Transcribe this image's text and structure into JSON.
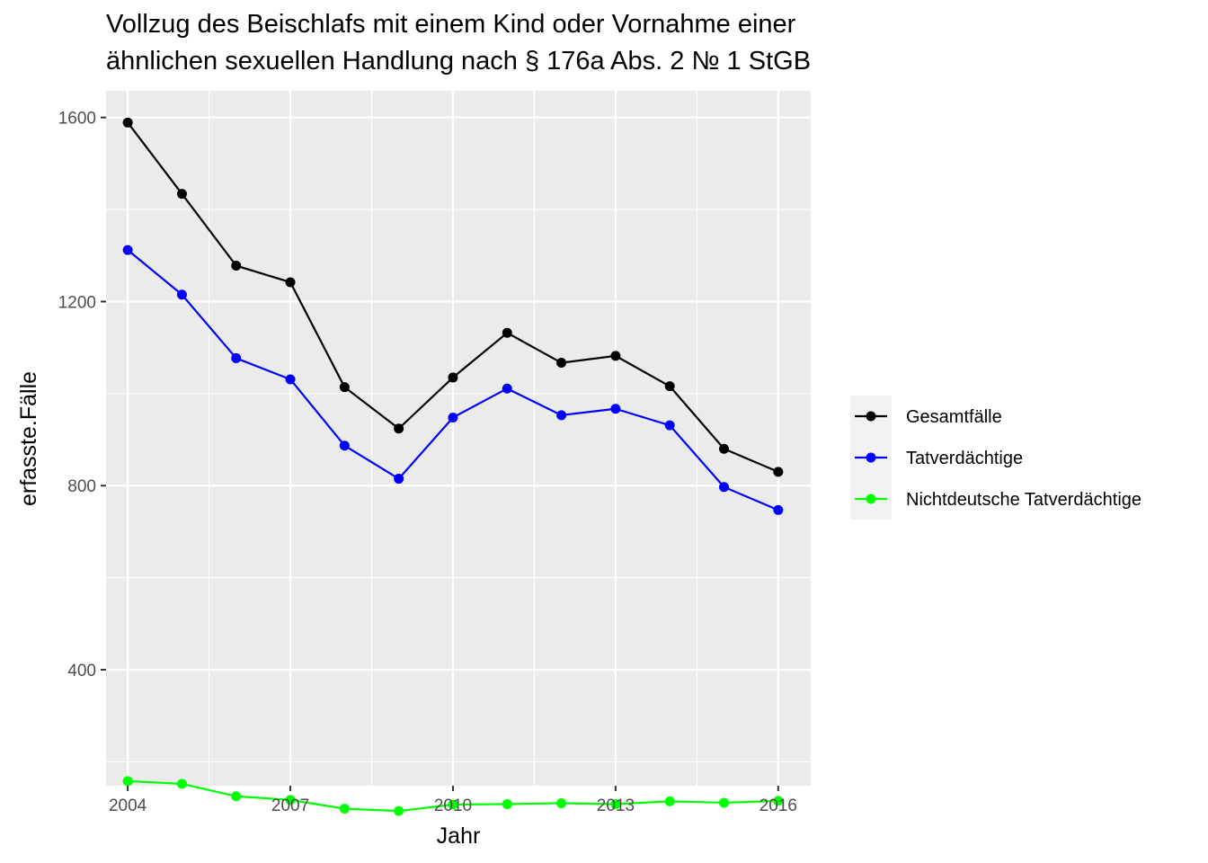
{
  "chart_data": {
    "type": "line",
    "title": [
      "Vollzug des Beischlafs mit einem Kind oder Vornahme einer",
      "ähnlichen sexuellen Handlung nach § 176a Abs. 2 № 1 StGB"
    ],
    "xlabel": "Jahr",
    "ylabel": "erfasste.Fälle",
    "x": [
      2004,
      2005,
      2006,
      2007,
      2008,
      2009,
      2010,
      2011,
      2012,
      2013,
      2014,
      2015,
      2016
    ],
    "x_ticks": [
      "2004",
      "2007",
      "2010",
      "2013",
      "2016"
    ],
    "y_ticks": [
      "400",
      "800",
      "1200",
      "1600"
    ],
    "xlim": [
      2003.6,
      2016.6
    ],
    "ylim": [
      148,
      1658
    ],
    "grid": true,
    "legend_position": "right",
    "series": [
      {
        "name": "Gesamtfälle",
        "color": "#000000",
        "values": [
          1589,
          1434,
          1278,
          1242,
          1014,
          924,
          1035,
          1132,
          1067,
          1082,
          1016,
          880,
          830
        ]
      },
      {
        "name": "Tatverdächtige",
        "color": "#0000ff",
        "values": [
          1312,
          1215,
          1077,
          1031,
          887,
          815,
          948,
          1011,
          953,
          967,
          931,
          797,
          747
        ]
      },
      {
        "name": "Nichtdeutsche Tatverdächtige",
        "color": "#00ff00",
        "values": [
          158,
          152,
          125,
          117,
          98,
          93,
          107,
          108,
          110,
          108,
          114,
          111,
          115
        ]
      }
    ]
  }
}
